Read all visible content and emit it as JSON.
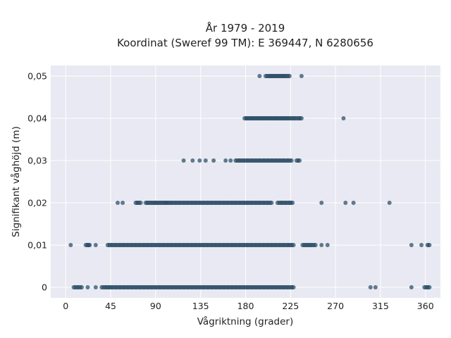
{
  "chart_data": {
    "type": "scatter",
    "title": "År 1979 - 2019",
    "subtitle": "Koordinat (Sweref 99 TM): E 369447, N 6280656",
    "xlabel": "Vågriktning (grader)",
    "ylabel": "Signifikant våghöjd (m)",
    "xlim": [
      -15,
      375
    ],
    "ylim": [
      -0.0025,
      0.0525
    ],
    "xticks": [
      0,
      45,
      90,
      135,
      180,
      225,
      270,
      315,
      360
    ],
    "xtick_labels": [
      "0",
      "45",
      "90",
      "135",
      "180",
      "225",
      "270",
      "315",
      "360"
    ],
    "yticks": [
      0,
      0.01,
      0.02,
      0.03,
      0.04,
      0.05
    ],
    "ytick_labels": [
      "0",
      "0,01",
      "0,02",
      "0,03",
      "0,04",
      "0,05"
    ],
    "grid": true,
    "marker_color": "#2f5069",
    "background_color": "#e8e9f2",
    "points": [
      {
        "y": 0.05,
        "x": [
          194,
          200,
          203,
          205,
          207,
          209,
          211,
          213,
          215,
          217,
          219,
          221,
          224,
          236
        ]
      },
      {
        "y": 0.04,
        "x": [
          179,
          181,
          183,
          185,
          187,
          189,
          191,
          193,
          195,
          197,
          199,
          201,
          203,
          205,
          207,
          209,
          211,
          213,
          215,
          217,
          219,
          221,
          223,
          226,
          229,
          233,
          236,
          278
        ]
      },
      {
        "y": 0.03,
        "x": [
          118,
          127,
          134,
          140,
          148,
          160,
          165,
          170,
          174,
          178,
          182,
          186,
          190,
          194,
          198,
          202,
          206,
          210,
          214,
          218,
          222,
          226,
          231,
          234
        ]
      },
      {
        "y": 0.02,
        "x": [
          52,
          57,
          70,
          72,
          75,
          80,
          82,
          85,
          88,
          90,
          92,
          95,
          98,
          100,
          101,
          103,
          106,
          110,
          114,
          118,
          122,
          126,
          130,
          134,
          138,
          142,
          146,
          150,
          154,
          158,
          162,
          166,
          170,
          174,
          178,
          182,
          186,
          190,
          194,
          198,
          202,
          206,
          212,
          216,
          220,
          224,
          227,
          256,
          280,
          288,
          324
        ]
      },
      {
        "y": 0.01,
        "x": [
          5,
          20,
          22,
          23,
          24,
          30,
          42,
          46,
          50,
          54,
          58,
          62,
          66,
          70,
          74,
          78,
          82,
          86,
          90,
          94,
          98,
          102,
          106,
          110,
          114,
          118,
          122,
          126,
          130,
          134,
          138,
          142,
          146,
          150,
          154,
          158,
          162,
          166,
          170,
          174,
          178,
          182,
          186,
          190,
          194,
          198,
          202,
          206,
          210,
          214,
          218,
          222,
          225,
          228,
          237,
          240,
          243,
          246,
          250,
          256,
          262,
          346,
          356,
          362,
          364
        ]
      },
      {
        "y": 0.0,
        "x": [
          8,
          12,
          16,
          22,
          30,
          36,
          40,
          43,
          46,
          50,
          54,
          58,
          62,
          66,
          70,
          74,
          78,
          82,
          86,
          90,
          94,
          98,
          102,
          106,
          110,
          114,
          118,
          122,
          126,
          130,
          134,
          138,
          142,
          146,
          150,
          154,
          158,
          162,
          166,
          170,
          174,
          178,
          182,
          186,
          190,
          194,
          198,
          202,
          206,
          210,
          214,
          218,
          222,
          226,
          228,
          305,
          310,
          346,
          359,
          362,
          364
        ]
      }
    ]
  }
}
